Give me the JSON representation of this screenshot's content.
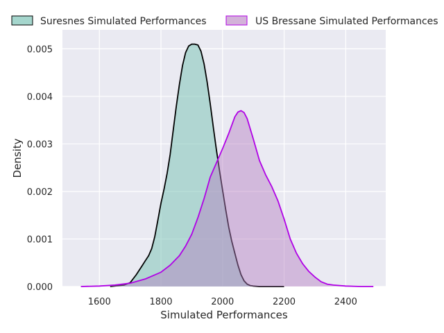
{
  "chart_data": {
    "type": "area",
    "title": "",
    "xlabel": "Simulated Performances",
    "ylabel": "Density",
    "xlim": [
      1480,
      2530
    ],
    "ylim": [
      0,
      0.0054
    ],
    "xticks": [
      1600,
      1800,
      2000,
      2200,
      2400
    ],
    "yticks": [
      0.0,
      0.001,
      0.002,
      0.003,
      0.004,
      0.005
    ],
    "ytick_labels": [
      "0.000",
      "0.001",
      "0.002",
      "0.003",
      "0.004",
      "0.005"
    ],
    "grid": true,
    "legend_position": "top",
    "series": [
      {
        "name": "Suresnes Simulated Performances",
        "fill": "#7fc4b8",
        "fill_opacity": 0.55,
        "line": "#000000",
        "x": [
          1635,
          1680,
          1700,
          1720,
          1740,
          1750,
          1760,
          1770,
          1780,
          1790,
          1800,
          1810,
          1820,
          1830,
          1840,
          1850,
          1860,
          1870,
          1880,
          1890,
          1900,
          1910,
          1920,
          1930,
          1940,
          1950,
          1960,
          1970,
          1980,
          1990,
          2000,
          2010,
          2020,
          2030,
          2040,
          2050,
          2060,
          2070,
          2080,
          2090,
          2100,
          2120,
          2140,
          2170,
          2200
        ],
        "y": [
          0.0,
          3e-05,
          8e-05,
          0.00025,
          0.00045,
          0.00055,
          0.00065,
          0.0008,
          0.00105,
          0.0014,
          0.00175,
          0.00205,
          0.00238,
          0.00278,
          0.0033,
          0.0038,
          0.00425,
          0.00465,
          0.00492,
          0.00506,
          0.0051,
          0.0051,
          0.00508,
          0.00495,
          0.00468,
          0.0043,
          0.00385,
          0.00335,
          0.00288,
          0.00245,
          0.00203,
          0.00163,
          0.00125,
          0.00095,
          0.0007,
          0.00045,
          0.00025,
          0.00012,
          5e-05,
          2e-05,
          1e-05,
          0.0,
          0.0,
          0.0,
          0.0
        ]
      },
      {
        "name": "US Bressane Simulated Performances",
        "fill": "#b67fc0",
        "fill_opacity": 0.45,
        "line": "#b000e6",
        "x": [
          1540,
          1600,
          1650,
          1700,
          1750,
          1800,
          1830,
          1860,
          1880,
          1900,
          1920,
          1940,
          1960,
          1980,
          2000,
          2020,
          2040,
          2050,
          2060,
          2070,
          2080,
          2100,
          2120,
          2140,
          2160,
          2180,
          2200,
          2220,
          2240,
          2260,
          2280,
          2300,
          2320,
          2340,
          2360,
          2400,
          2450,
          2490
        ],
        "y": [
          0.0,
          1e-05,
          3e-05,
          7e-05,
          0.00016,
          0.0003,
          0.00045,
          0.00065,
          0.00085,
          0.0011,
          0.00145,
          0.00185,
          0.0023,
          0.0026,
          0.0029,
          0.00322,
          0.00357,
          0.00367,
          0.0037,
          0.00366,
          0.00353,
          0.0031,
          0.00265,
          0.00235,
          0.0021,
          0.0018,
          0.00142,
          0.001,
          0.0007,
          0.00048,
          0.00032,
          0.0002,
          0.0001,
          5e-05,
          3e-05,
          1e-05,
          0.0,
          0.0
        ]
      }
    ]
  }
}
